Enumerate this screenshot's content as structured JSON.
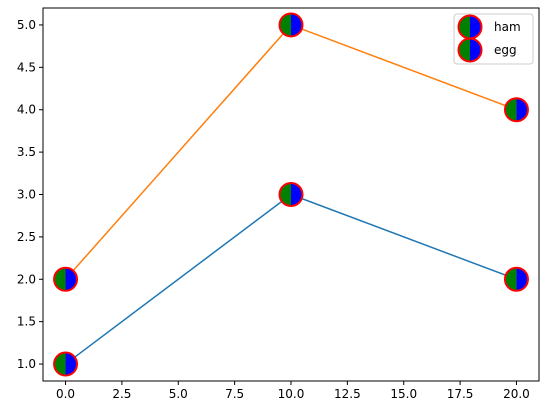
{
  "chart_data": {
    "type": "line",
    "title": "",
    "xlabel": "",
    "ylabel": "",
    "x": [
      0,
      10,
      20
    ],
    "xlim": [
      -1,
      21
    ],
    "ylim": [
      0.8,
      5.2
    ],
    "xticks": [
      0.0,
      2.5,
      5.0,
      7.5,
      10.0,
      12.5,
      15.0,
      17.5,
      20.0
    ],
    "xtick_labels": [
      "0.0",
      "2.5",
      "5.0",
      "7.5",
      "10.0",
      "12.5",
      "15.0",
      "17.5",
      "20.0"
    ],
    "yticks": [
      1.0,
      1.5,
      2.0,
      2.5,
      3.0,
      3.5,
      4.0,
      4.5,
      5.0
    ],
    "ytick_labels": [
      "1.0",
      "1.5",
      "2.0",
      "2.5",
      "3.0",
      "3.5",
      "4.0",
      "4.5",
      "5.0"
    ],
    "grid": false,
    "legend_position": "top-right",
    "series": [
      {
        "name": "ham",
        "values": [
          1,
          3,
          2
        ],
        "line_color": "#1f77b4"
      },
      {
        "name": "egg",
        "values": [
          2,
          5,
          4
        ],
        "line_color": "#ff7f0e"
      }
    ],
    "marker": {
      "shape": "circle-half",
      "left_color": "#008000",
      "right_color": "#0000ff",
      "edge_color": "#ff0000"
    }
  }
}
